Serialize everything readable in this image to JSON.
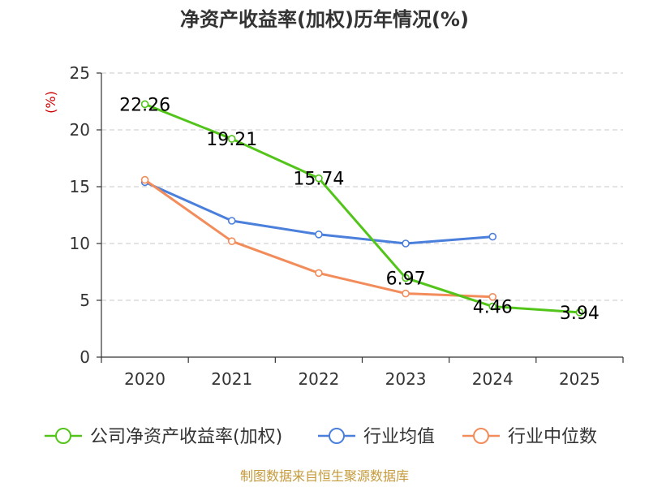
{
  "chart_data": {
    "type": "line",
    "title": "净资产收益率(加权)历年情况(%)",
    "ylabel": "(%)",
    "xlabel": "",
    "categories": [
      "2020",
      "2021",
      "2022",
      "2023",
      "2024",
      "2025"
    ],
    "ylim": [
      0,
      25
    ],
    "yticks": [
      "0",
      "5",
      "10",
      "15",
      "20",
      "25"
    ],
    "grid": true,
    "legend_position": "bottom",
    "series": [
      {
        "name": "公司净资产收益率(加权)",
        "color": "#52c41a",
        "values": [
          22.26,
          19.21,
          15.74,
          6.97,
          4.46,
          3.94
        ],
        "labels": [
          "22.26",
          "19.21",
          "15.74",
          "6.97",
          "4.46",
          "3.94"
        ]
      },
      {
        "name": "行业均值",
        "color": "#4a7fdc",
        "values": [
          15.4,
          12.0,
          10.8,
          10.0,
          10.6,
          null
        ]
      },
      {
        "name": "行业中位数",
        "color": "#f28c5b",
        "values": [
          15.6,
          10.2,
          7.4,
          5.6,
          5.3,
          null
        ]
      }
    ]
  },
  "source": {
    "text": "制图数据来自恒生聚源数据库",
    "color": "#c49a3b"
  },
  "unit_color": "#cc0000"
}
